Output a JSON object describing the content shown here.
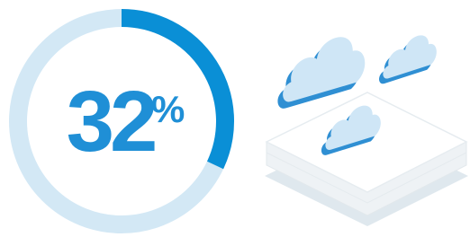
{
  "chart_data": {
    "type": "progress-ring",
    "values": [
      32
    ],
    "unit": "%",
    "max": 100,
    "color": "#0a8fd6",
    "track_color": "#d3e8f5",
    "text_color": "#1f8fd6"
  }
}
